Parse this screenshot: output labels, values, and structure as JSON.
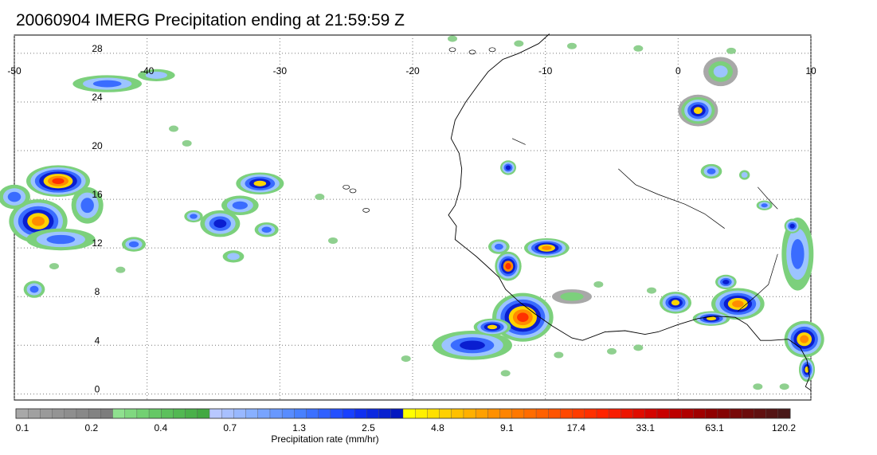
{
  "title": "20060904 IMERG Precipitation ending at 21:59:59 Z",
  "map": {
    "lon_labels": [
      "-50",
      "-40",
      "-30",
      "-20",
      "-10",
      "0",
      "10"
    ],
    "lat_labels": [
      "28",
      "24",
      "20",
      "16",
      "12",
      "8",
      "4",
      "0"
    ],
    "lon_range": [
      -50,
      10
    ],
    "lat_range": [
      -0.5,
      29.5
    ],
    "grid": "dotted"
  },
  "colorbar": {
    "title": "Precipitation rate (mm/hr)",
    "labels": [
      "0.1",
      "0.2",
      "0.4",
      "0.7",
      "1.3",
      "2.5",
      "4.8",
      "9.1",
      "17.4",
      "33.1",
      "63.1",
      "120.2"
    ],
    "colors": [
      "#a8a8a8",
      "#a0a0a0",
      "#9a9a9a",
      "#949494",
      "#8e8e8e",
      "#888888",
      "#828282",
      "#7c7c7c",
      "#8fe08f",
      "#80d880",
      "#72d072",
      "#66c866",
      "#5cc05c",
      "#52b852",
      "#4ab04a",
      "#42a842",
      "#b8c8ff",
      "#a8c0ff",
      "#98b8ff",
      "#88b0ff",
      "#78a4ff",
      "#6898ff",
      "#588cff",
      "#4880ff",
      "#3c70ff",
      "#3060ff",
      "#2450ff",
      "#1840ff",
      "#1030f0",
      "#0c28e0",
      "#0820d0",
      "#0418c0",
      "#ffff00",
      "#fff000",
      "#ffe000",
      "#ffd000",
      "#ffc000",
      "#ffb000",
      "#ffa000",
      "#ff9000",
      "#ff8400",
      "#ff7800",
      "#ff6c00",
      "#ff6000",
      "#ff5400",
      "#ff4800",
      "#ff3c00",
      "#ff3000",
      "#ff2400",
      "#f81c00",
      "#ec1400",
      "#e00c00",
      "#d40400",
      "#c80000",
      "#bc0000",
      "#b00000",
      "#a00000",
      "#900000",
      "#840404",
      "#780808",
      "#6c0c0c",
      "#601010",
      "#541414",
      "#481818"
    ]
  }
}
